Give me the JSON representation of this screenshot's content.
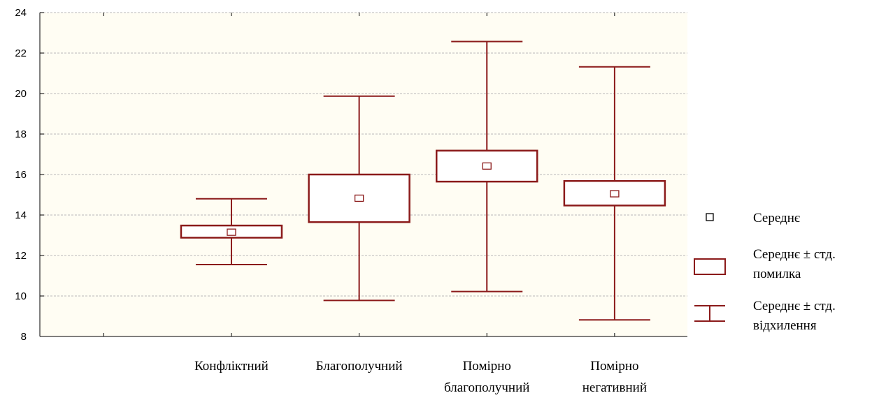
{
  "chart_data": {
    "type": "box",
    "ylim": [
      8,
      24
    ],
    "yticks": [
      8,
      10,
      12,
      14,
      16,
      18,
      20,
      22,
      24
    ],
    "grid": true,
    "legend_position": "right",
    "categories": [
      [
        "Конфліктний"
      ],
      [
        "Благополучний"
      ],
      [
        "Помірно",
        "благополучний"
      ],
      [
        "Помірно",
        "негативний"
      ]
    ],
    "groups": [
      {
        "mean": 13.15,
        "se_low": 12.88,
        "se_high": 13.48,
        "sd_low": 11.55,
        "sd_high": 14.8
      },
      {
        "mean": 14.83,
        "se_low": 13.65,
        "se_high": 16.0,
        "sd_low": 9.78,
        "sd_high": 19.87
      },
      {
        "mean": 16.42,
        "se_low": 15.65,
        "se_high": 17.18,
        "sd_low": 10.22,
        "sd_high": 22.57
      },
      {
        "mean": 15.05,
        "se_low": 14.47,
        "se_high": 15.68,
        "sd_low": 8.82,
        "sd_high": 21.32
      }
    ],
    "legend": [
      {
        "symbol": "mean",
        "lines": [
          "Середнє"
        ]
      },
      {
        "symbol": "box",
        "lines": [
          "Середнє ± стд.",
          "помилка"
        ]
      },
      {
        "symbol": "whisker",
        "lines": [
          "Середнє ± стд.",
          "відхилення"
        ]
      }
    ],
    "colors": {
      "series": "#8b1a1a",
      "plot_bg": "#fffdf3",
      "grid": "#b8b8b8",
      "axis": "#000000"
    }
  }
}
